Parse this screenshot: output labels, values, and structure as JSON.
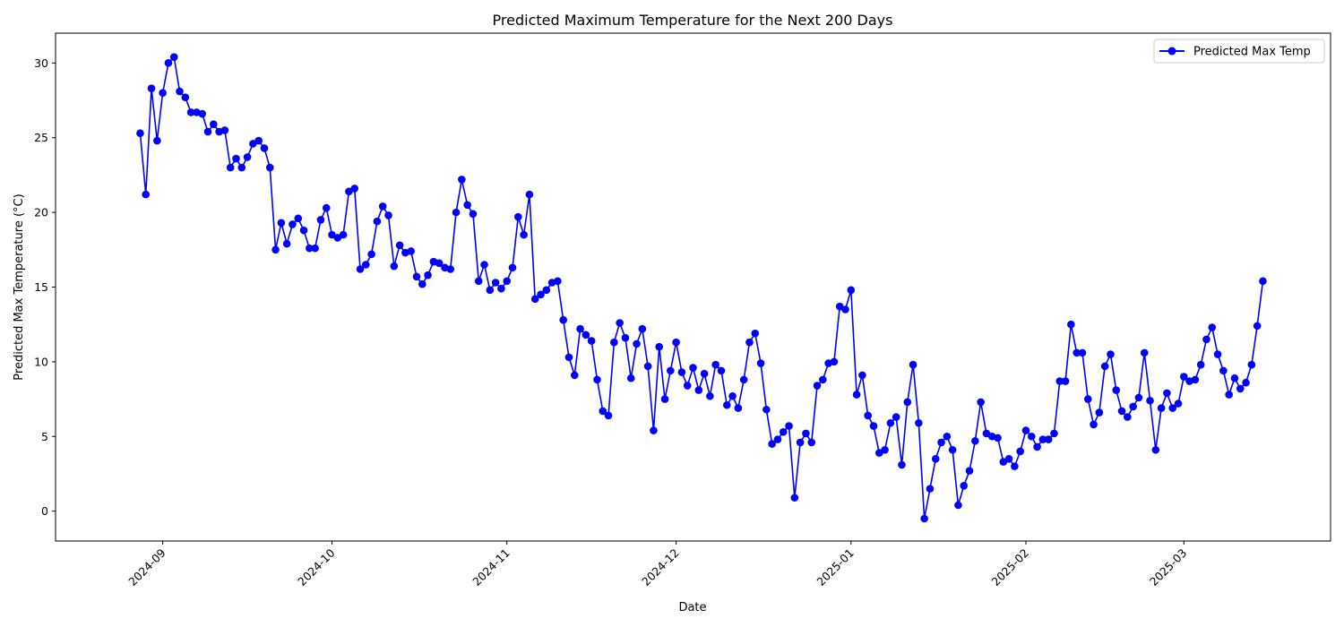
{
  "chart_data": {
    "type": "line",
    "title": "Predicted Maximum Temperature for the Next 200 Days",
    "xlabel": "Date",
    "ylabel": "Predicted Max Temperature (°C)",
    "x_tick_labels": [
      "2024-09",
      "2024-10",
      "2024-11",
      "2024-12",
      "2025-01",
      "2025-02",
      "2025-03"
    ],
    "x_tick_dates": [
      "2024-09-01",
      "2024-10-01",
      "2024-11-01",
      "2024-12-01",
      "2025-01-01",
      "2025-02-01",
      "2025-03-01"
    ],
    "xlim": [
      "2024-08-13",
      "2025-03-27"
    ],
    "y_ticks": [
      0,
      5,
      10,
      15,
      20,
      25,
      30
    ],
    "ylim": [
      -2.0,
      32.0
    ],
    "grid": false,
    "legend_position": "top-right",
    "color": "#0000ff",
    "series": [
      {
        "name": "Predicted Max Temp",
        "x_start": "2024-08-28",
        "x_step_days": 1,
        "values": [
          25.3,
          21.2,
          28.3,
          24.8,
          28.0,
          30.0,
          30.4,
          28.1,
          27.7,
          26.7,
          26.7,
          26.6,
          25.4,
          25.9,
          25.4,
          25.5,
          23.0,
          23.6,
          23.0,
          23.7,
          24.6,
          24.8,
          24.3,
          23.0,
          17.5,
          19.3,
          17.9,
          19.2,
          19.6,
          18.8,
          17.6,
          17.6,
          19.5,
          20.3,
          18.5,
          18.3,
          18.5,
          21.4,
          21.6,
          16.2,
          16.5,
          17.2,
          19.4,
          20.4,
          19.8,
          16.4,
          17.8,
          17.3,
          17.4,
          15.7,
          15.2,
          15.8,
          16.7,
          16.6,
          16.3,
          16.2,
          20.0,
          22.2,
          20.5,
          19.9,
          15.4,
          16.5,
          14.8,
          15.3,
          14.9,
          15.4,
          16.3,
          19.7,
          18.5,
          21.2,
          14.2,
          14.5,
          14.8,
          15.3,
          15.4,
          12.8,
          10.3,
          9.1,
          12.2,
          11.8,
          11.4,
          8.8,
          6.7,
          6.4,
          11.3,
          12.6,
          11.6,
          8.9,
          11.2,
          12.2,
          9.7,
          5.4,
          11.0,
          7.5,
          9.4,
          11.3,
          9.3,
          8.4,
          9.6,
          8.1,
          9.2,
          7.7,
          9.8,
          9.4,
          7.1,
          7.7,
          6.9,
          8.8,
          11.3,
          11.9,
          9.9,
          6.8,
          4.5,
          4.8,
          5.3,
          5.7,
          0.9,
          4.6,
          5.2,
          4.6,
          8.4,
          8.8,
          9.9,
          10.0,
          13.7,
          13.5,
          14.8,
          7.8,
          9.1,
          6.4,
          5.7,
          3.9,
          4.1,
          5.9,
          6.3,
          3.1,
          7.3,
          9.8,
          5.9,
          -0.5,
          1.5,
          3.5,
          4.6,
          5.0,
          4.1,
          0.4,
          1.7,
          2.7,
          4.7,
          7.3,
          5.2,
          5.0,
          4.9,
          3.3,
          3.5,
          3.0,
          4.0,
          5.4,
          5.0,
          4.3,
          4.8,
          4.8,
          5.2,
          8.7,
          8.7,
          12.5,
          10.6,
          10.6,
          7.5,
          5.8,
          6.6,
          9.7,
          10.5,
          8.1,
          6.7,
          6.3,
          7.0,
          7.6,
          10.6,
          7.4,
          4.1,
          6.9,
          7.9,
          6.9,
          7.2,
          9.0,
          8.7,
          8.8,
          9.8,
          11.5,
          12.3,
          10.5,
          9.4,
          7.8,
          8.9,
          8.2,
          8.6,
          9.8,
          12.4,
          15.4
        ]
      }
    ]
  }
}
